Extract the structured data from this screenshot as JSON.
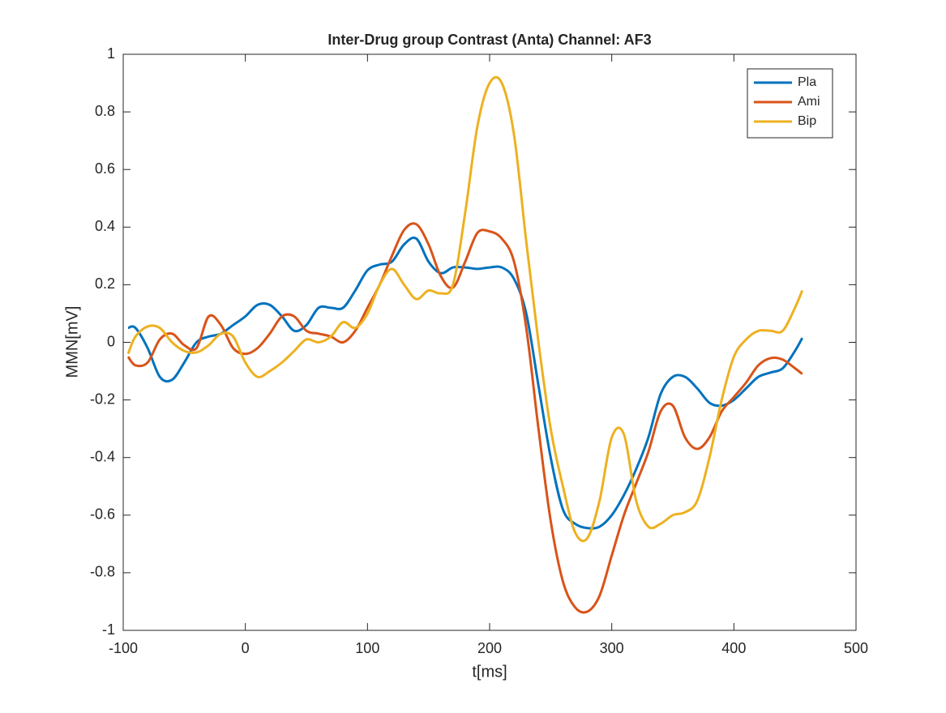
{
  "chart_data": {
    "type": "line",
    "title": "Inter-Drug group Contrast (Anta) Channel: AF3",
    "x_label": "t[ms]",
    "y_label": "MMN[mV]",
    "x": [
      -96,
      -90,
      -80,
      -70,
      -60,
      -50,
      -40,
      -30,
      -20,
      -10,
      0,
      10,
      20,
      30,
      40,
      50,
      60,
      70,
      80,
      90,
      100,
      110,
      120,
      130,
      140,
      150,
      160,
      170,
      180,
      190,
      200,
      210,
      220,
      230,
      240,
      250,
      260,
      270,
      280,
      290,
      300,
      310,
      320,
      330,
      340,
      350,
      360,
      370,
      380,
      390,
      400,
      410,
      420,
      430,
      440,
      450,
      456
    ],
    "series": [
      {
        "name": "Pla",
        "color": "#0072BD",
        "values": [
          0.05,
          0.05,
          -0.02,
          -0.12,
          -0.13,
          -0.07,
          0.0,
          0.02,
          0.03,
          0.06,
          0.09,
          0.13,
          0.13,
          0.09,
          0.04,
          0.06,
          0.12,
          0.12,
          0.12,
          0.18,
          0.25,
          0.27,
          0.28,
          0.34,
          0.36,
          0.28,
          0.24,
          0.26,
          0.26,
          0.255,
          0.26,
          0.26,
          0.22,
          0.1,
          -0.15,
          -0.4,
          -0.58,
          -0.63,
          -0.645,
          -0.64,
          -0.6,
          -0.53,
          -0.44,
          -0.33,
          -0.18,
          -0.12,
          -0.12,
          -0.16,
          -0.21,
          -0.22,
          -0.2,
          -0.16,
          -0.12,
          -0.105,
          -0.09,
          -0.03,
          0.015
        ]
      },
      {
        "name": "Ami",
        "color": "#D95319",
        "values": [
          -0.05,
          -0.08,
          -0.07,
          0.01,
          0.03,
          -0.01,
          -0.02,
          0.09,
          0.06,
          -0.02,
          -0.04,
          -0.02,
          0.03,
          0.09,
          0.09,
          0.04,
          0.03,
          0.02,
          0.0,
          0.04,
          0.12,
          0.2,
          0.3,
          0.39,
          0.41,
          0.34,
          0.23,
          0.19,
          0.28,
          0.38,
          0.385,
          0.36,
          0.28,
          0.05,
          -0.3,
          -0.62,
          -0.83,
          -0.92,
          -0.935,
          -0.88,
          -0.74,
          -0.6,
          -0.49,
          -0.38,
          -0.24,
          -0.22,
          -0.33,
          -0.37,
          -0.33,
          -0.24,
          -0.19,
          -0.14,
          -0.08,
          -0.055,
          -0.06,
          -0.09,
          -0.11
        ]
      },
      {
        "name": "Bip",
        "color": "#EDB120",
        "values": [
          -0.04,
          0.02,
          0.055,
          0.05,
          0.0,
          -0.03,
          -0.035,
          -0.01,
          0.03,
          0.02,
          -0.07,
          -0.12,
          -0.1,
          -0.07,
          -0.03,
          0.01,
          0.0,
          0.02,
          0.07,
          0.05,
          0.1,
          0.2,
          0.255,
          0.2,
          0.15,
          0.18,
          0.17,
          0.2,
          0.45,
          0.75,
          0.9,
          0.9,
          0.72,
          0.35,
          0.0,
          -0.3,
          -0.5,
          -0.66,
          -0.68,
          -0.55,
          -0.33,
          -0.32,
          -0.55,
          -0.64,
          -0.63,
          -0.6,
          -0.59,
          -0.55,
          -0.4,
          -0.2,
          -0.05,
          0.01,
          0.04,
          0.04,
          0.04,
          0.12,
          0.18
        ]
      }
    ],
    "xlim": [
      -100,
      500
    ],
    "xticks": [
      -100,
      0,
      100,
      200,
      300,
      400,
      500
    ],
    "ylim": [
      -1,
      1
    ],
    "yticks": [
      -1,
      -0.8,
      -0.6,
      -0.4,
      -0.2,
      0,
      0.2,
      0.4,
      0.6,
      0.8,
      1
    ],
    "grid": false,
    "legend": "top-right"
  }
}
